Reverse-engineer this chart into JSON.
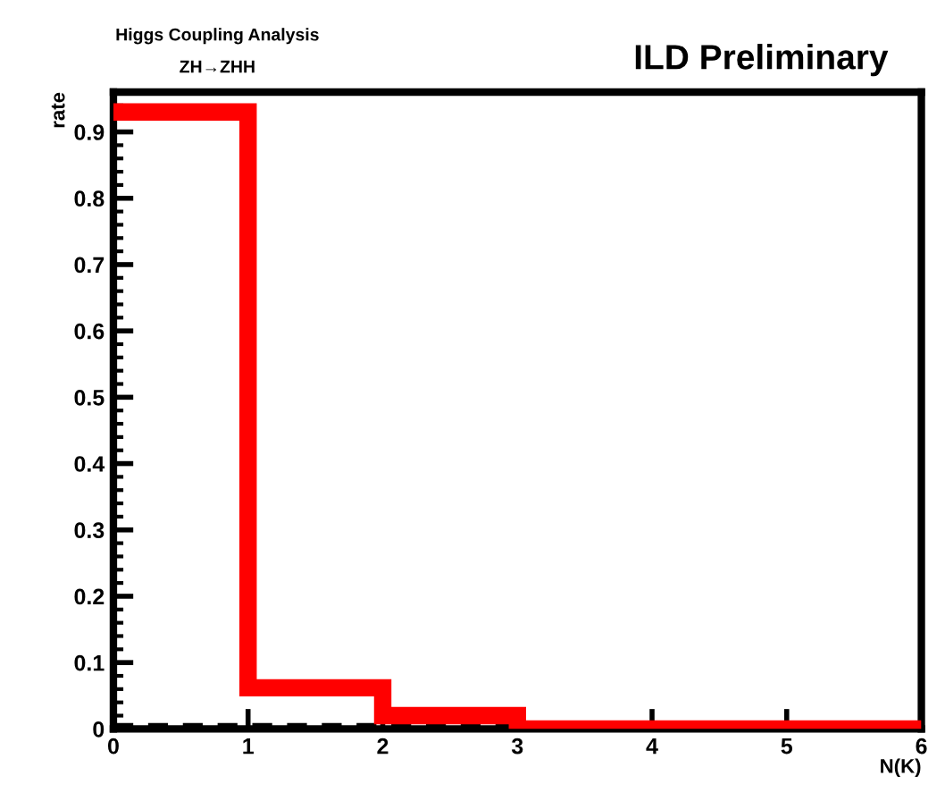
{
  "chart_data": {
    "type": "histogram",
    "title": "Higgs Coupling Analysis",
    "subtitle": "ZH→ZHH",
    "annotations": [
      "ILD Preliminary"
    ],
    "xlabel": "N(K)",
    "ylabel": "rate",
    "bins": [
      0,
      1,
      2,
      3,
      4,
      5,
      6
    ],
    "series": [
      {
        "color": "#ff0000",
        "values": [
          0.93,
          0.062,
          0.02,
          0,
          0,
          0
        ]
      },
      {
        "color": "#000000",
        "line_style": "dashed",
        "values": [
          0.005,
          0.005,
          0.005,
          0.005,
          0.005,
          0.005
        ]
      }
    ],
    "xlim": [
      0,
      6
    ],
    "xticks": [
      0,
      1,
      2,
      3,
      4,
      5,
      6
    ],
    "ylim": [
      0,
      0.96
    ],
    "yticks": [
      {
        "value": 0,
        "label": "0"
      },
      0.1,
      0.2,
      0.3,
      0.4,
      0.5,
      0.6,
      0.7,
      0.8,
      0.9
    ],
    "grid": false
  }
}
